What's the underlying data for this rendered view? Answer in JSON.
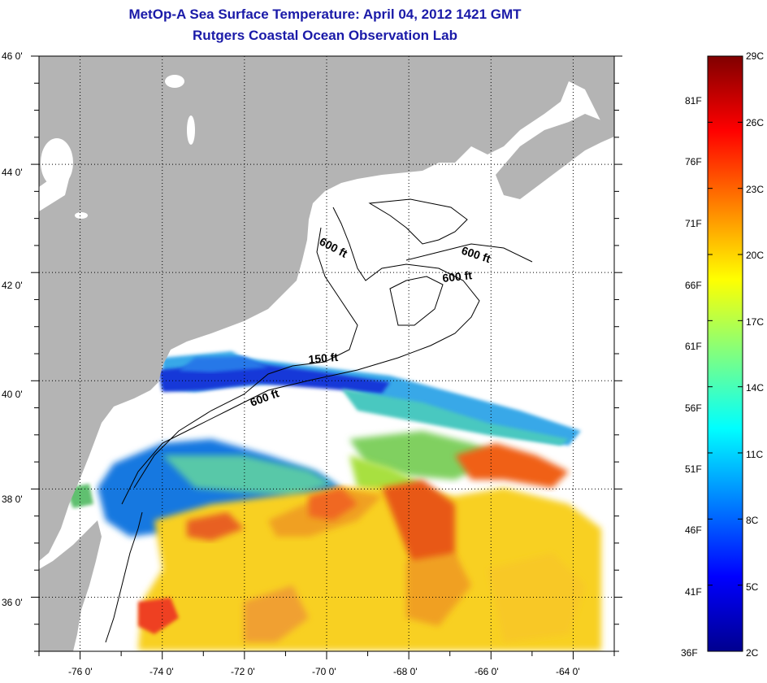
{
  "title": "MetOp-A Sea Surface Temperature:  April 04, 2012 1421 GMT",
  "subtitle": "Rutgers Coastal Ocean Observation Lab",
  "map": {
    "lon_ticks": [
      "-76 0'",
      "-74 0'",
      "-72 0'",
      "-70 0'",
      "-68 0'",
      "-66 0'",
      "-64 0'"
    ],
    "lat_ticks": [
      "46 0'",
      "44 0'",
      "42 0'",
      "40 0'",
      "38 0'",
      "36 0'"
    ],
    "lon_range": [
      -77,
      -63
    ],
    "lat_range": [
      35,
      46
    ],
    "contour_labels": [
      "600 ft",
      "600 ft",
      "600 ft",
      "150 ft",
      "600 ft"
    ],
    "land_color": "#b4b4b4"
  },
  "colorbar": {
    "celsius_labels": [
      "29C",
      "26C",
      "23C",
      "20C",
      "17C",
      "14C",
      "11C",
      "8C",
      "5C",
      "2C"
    ],
    "fahrenheit_labels": [
      "81F",
      "76F",
      "71F",
      "66F",
      "61F",
      "56F",
      "51F",
      "46F",
      "41F",
      "36F"
    ],
    "range_c": [
      2,
      29
    ],
    "colors": [
      "#00008f",
      "#0000ff",
      "#0080ff",
      "#00ffff",
      "#80ff80",
      "#ffff00",
      "#ff8000",
      "#ff0000",
      "#800000"
    ]
  }
}
